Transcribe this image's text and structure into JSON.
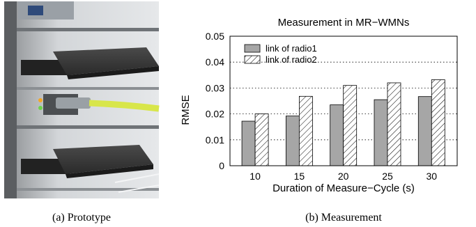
{
  "captions": {
    "left": "(a)  Prototype",
    "right": "(b)  Measurement"
  },
  "photo": {
    "description_icon": "hardware-photo"
  },
  "colors": {
    "radio1_fill": "#a6a6a6",
    "radio2_fill": "#ffffff",
    "cable": "#d8e64a",
    "chassis": "#c9cccf"
  },
  "chart_data": {
    "type": "bar",
    "title": "Measurement in MR−WMNs",
    "xlabel": "Duration of Measure−Cycle (s)",
    "ylabel": "RMSE",
    "categories": [
      "10",
      "15",
      "20",
      "25",
      "30"
    ],
    "ylim": [
      0,
      0.05
    ],
    "yticks": [
      "0",
      "0.01",
      "0.02",
      "0.03",
      "0.04",
      "0.05"
    ],
    "grid": "horizontal-dotted",
    "legend_position": "top-left",
    "series": [
      {
        "name": "link of radio1",
        "values": [
          0.0172,
          0.0192,
          0.0235,
          0.0255,
          0.0267
        ],
        "pattern": "solid-gray"
      },
      {
        "name": "link of radio2",
        "values": [
          0.02,
          0.0268,
          0.031,
          0.032,
          0.0332
        ],
        "pattern": "hatched"
      }
    ]
  }
}
